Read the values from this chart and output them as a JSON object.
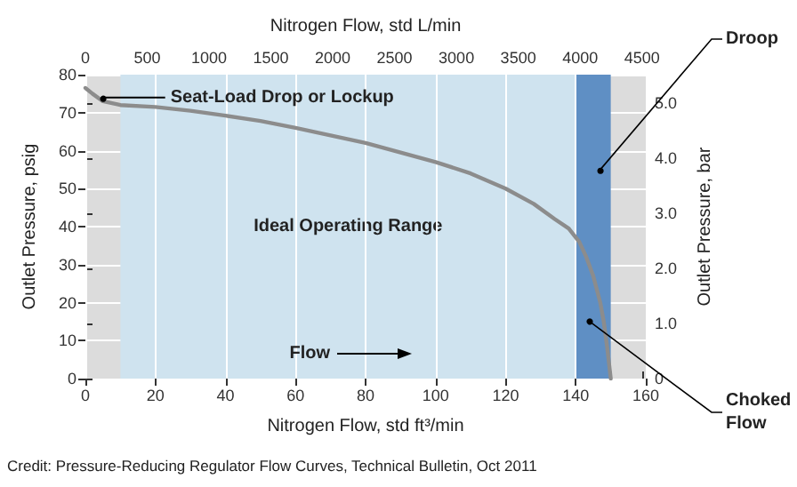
{
  "chart_data": {
    "type": "line",
    "xlabel": "Nitrogen Flow, std ft³/min",
    "x2label": "Nitrogen Flow, std L/min",
    "ylabel": "Outlet Pressure, psig",
    "y2label": "Outlet Pressure, bar",
    "x": [
      0,
      2,
      5,
      10,
      20,
      30,
      40,
      50,
      60,
      70,
      80,
      90,
      100,
      110,
      120,
      128,
      134,
      138,
      141,
      143,
      145,
      147,
      148,
      149,
      150
    ],
    "series": [
      {
        "color": "#8c8c8c",
        "values": [
          76.5,
          75,
          73,
          72,
          71.5,
          70.5,
          69.2,
          67.8,
          66,
          64,
          62,
          59.5,
          57,
          54,
          50,
          46,
          42,
          39.5,
          36,
          32,
          27,
          20,
          15,
          8,
          0
        ]
      }
    ],
    "xlim": [
      0,
      160
    ],
    "xticks": [
      0,
      20,
      40,
      60,
      80,
      100,
      120,
      140,
      160
    ],
    "x2lim": [
      0,
      4531
    ],
    "x2ticks": [
      0,
      500,
      1000,
      1500,
      2000,
      2500,
      3000,
      3500,
      4000,
      4500
    ],
    "ylim": [
      0,
      80
    ],
    "yticks": [
      0,
      10,
      20,
      30,
      40,
      50,
      60,
      70,
      80
    ],
    "y2lim": [
      0,
      5.516
    ],
    "y2ticks": [
      0,
      {
        "value": 1,
        "label": "1.0"
      },
      {
        "value": 2,
        "label": "2.0"
      },
      {
        "value": 3,
        "label": "3.0"
      },
      {
        "value": 4,
        "label": "4.0"
      },
      {
        "value": 5,
        "label": "5.0"
      }
    ],
    "bands": [
      {
        "axis": "x",
        "from": 10,
        "to": 140,
        "label": "Ideal Operating Range",
        "color": "#cfe3ef"
      },
      {
        "axis": "x",
        "from": 140,
        "to": 150,
        "color": "#5f8fc4"
      }
    ],
    "annotations": [
      {
        "text": "Seat-Load Drop or Lockup",
        "x": 5,
        "y": 74
      },
      {
        "text": "Droop",
        "x": 147,
        "y": 55
      },
      {
        "text": "Choked Flow",
        "x": 144,
        "y": 15
      },
      "Flow",
      "Credit: Pressure-Reducing Regulator Flow Curves, Technical Bulletin, Oct 2011"
    ],
    "grid": true,
    "marker": "none",
    "line_style": "solid"
  }
}
